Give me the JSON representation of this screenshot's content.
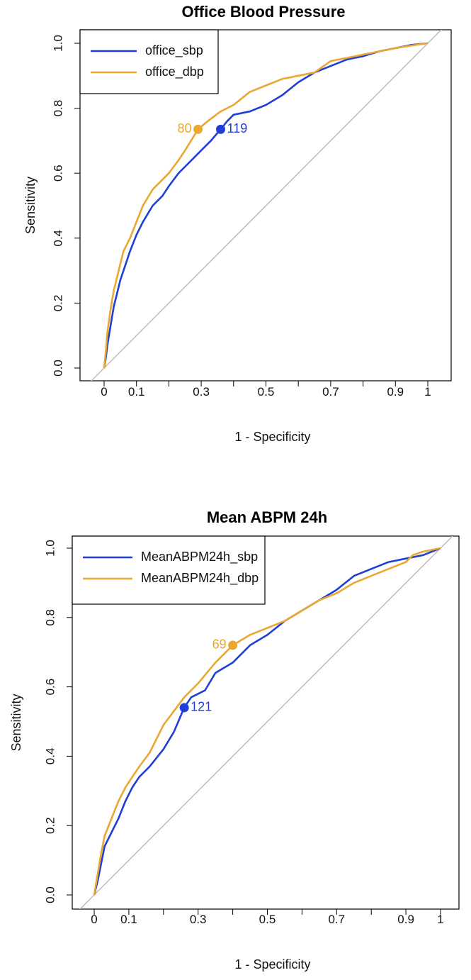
{
  "colors": {
    "sbp": "#1f3fd6",
    "dbp": "#eaa830",
    "diagonal": "#bdbdbd"
  },
  "chart_data": [
    {
      "type": "line",
      "title": "Office Blood Pressure",
      "xlabel": "1 - Specificity",
      "ylabel": "Sensitivity",
      "xlim": [
        0,
        1
      ],
      "ylim": [
        0,
        1
      ],
      "x_ticks": [
        "0",
        "0.1",
        "0.3",
        "0.5",
        "0.7",
        "0.9",
        "1"
      ],
      "y_ticks": [
        "0.0",
        "0.2",
        "0.4",
        "0.6",
        "0.8",
        "1.0"
      ],
      "legend": "top-left",
      "grid": false,
      "series": [
        {
          "name": "office_sbp",
          "color": "#1f3fd6",
          "x": [
            0,
            0.005,
            0.01,
            0.02,
            0.03,
            0.04,
            0.05,
            0.06,
            0.08,
            0.1,
            0.12,
            0.15,
            0.18,
            0.2,
            0.23,
            0.25,
            0.28,
            0.3,
            0.33,
            0.36,
            0.38,
            0.4,
            0.45,
            0.5,
            0.55,
            0.6,
            0.65,
            0.7,
            0.75,
            0.8,
            0.85,
            0.9,
            0.95,
            1.0
          ],
          "y": [
            0,
            0.03,
            0.07,
            0.13,
            0.19,
            0.23,
            0.27,
            0.3,
            0.36,
            0.41,
            0.45,
            0.5,
            0.53,
            0.56,
            0.6,
            0.62,
            0.65,
            0.67,
            0.7,
            0.735,
            0.76,
            0.78,
            0.79,
            0.81,
            0.84,
            0.88,
            0.91,
            0.93,
            0.95,
            0.96,
            0.975,
            0.985,
            0.995,
            1.0
          ]
        },
        {
          "name": "office_dbp",
          "color": "#eaa830",
          "x": [
            0,
            0.005,
            0.01,
            0.02,
            0.03,
            0.04,
            0.05,
            0.06,
            0.08,
            0.1,
            0.12,
            0.15,
            0.18,
            0.2,
            0.23,
            0.25,
            0.29,
            0.32,
            0.36,
            0.4,
            0.45,
            0.5,
            0.55,
            0.6,
            0.65,
            0.7,
            0.75,
            0.8,
            0.85,
            0.9,
            0.95,
            1.0
          ],
          "y": [
            0,
            0.05,
            0.11,
            0.18,
            0.24,
            0.28,
            0.32,
            0.36,
            0.4,
            0.45,
            0.5,
            0.55,
            0.58,
            0.6,
            0.64,
            0.67,
            0.735,
            0.76,
            0.79,
            0.81,
            0.85,
            0.87,
            0.89,
            0.9,
            0.91,
            0.945,
            0.955,
            0.965,
            0.975,
            0.985,
            0.993,
            1.0
          ]
        }
      ],
      "points": [
        {
          "series": "office_dbp",
          "x": 0.29,
          "y": 0.735,
          "label": "80",
          "label_side": "left"
        },
        {
          "series": "office_sbp",
          "x": 0.36,
          "y": 0.735,
          "label": "119",
          "label_side": "right"
        }
      ]
    },
    {
      "type": "line",
      "title": "Mean ABPM 24h",
      "xlabel": "1 - Specificity",
      "ylabel": "Sensitivity",
      "xlim": [
        0,
        1
      ],
      "ylim": [
        0,
        1
      ],
      "x_ticks": [
        "0",
        "0.1",
        "0.3",
        "0.5",
        "0.7",
        "0.9",
        "1"
      ],
      "y_ticks": [
        "0.0",
        "0.2",
        "0.4",
        "0.6",
        "0.8",
        "1.0"
      ],
      "legend": "top-left",
      "grid": false,
      "series": [
        {
          "name": "MeanABPM24h_sbp",
          "color": "#1f3fd6",
          "x": [
            0,
            0.01,
            0.02,
            0.03,
            0.05,
            0.07,
            0.09,
            0.11,
            0.13,
            0.16,
            0.2,
            0.23,
            0.26,
            0.28,
            0.3,
            0.32,
            0.35,
            0.4,
            0.45,
            0.5,
            0.55,
            0.6,
            0.65,
            0.7,
            0.75,
            0.8,
            0.85,
            0.9,
            0.95,
            1.0
          ],
          "y": [
            0,
            0.04,
            0.09,
            0.14,
            0.18,
            0.22,
            0.27,
            0.31,
            0.34,
            0.37,
            0.42,
            0.47,
            0.54,
            0.57,
            0.58,
            0.59,
            0.64,
            0.67,
            0.72,
            0.75,
            0.79,
            0.82,
            0.85,
            0.88,
            0.92,
            0.94,
            0.96,
            0.97,
            0.98,
            1.0
          ]
        },
        {
          "name": "MeanABPM24h_dbp",
          "color": "#eaa830",
          "x": [
            0,
            0.01,
            0.02,
            0.03,
            0.05,
            0.07,
            0.09,
            0.11,
            0.13,
            0.16,
            0.2,
            0.23,
            0.26,
            0.3,
            0.35,
            0.4,
            0.45,
            0.5,
            0.55,
            0.6,
            0.65,
            0.7,
            0.75,
            0.8,
            0.85,
            0.9,
            0.92,
            0.95,
            1.0
          ],
          "y": [
            0,
            0.06,
            0.12,
            0.17,
            0.22,
            0.27,
            0.31,
            0.34,
            0.37,
            0.41,
            0.49,
            0.53,
            0.57,
            0.61,
            0.67,
            0.72,
            0.75,
            0.77,
            0.79,
            0.82,
            0.85,
            0.87,
            0.9,
            0.92,
            0.94,
            0.96,
            0.98,
            0.99,
            1.0
          ]
        }
      ],
      "points": [
        {
          "series": "MeanABPM24h_dbp",
          "x": 0.4,
          "y": 0.72,
          "label": "69",
          "label_side": "left"
        },
        {
          "series": "MeanABPM24h_sbp",
          "x": 0.26,
          "y": 0.54,
          "label": "121",
          "label_side": "right"
        }
      ]
    }
  ]
}
